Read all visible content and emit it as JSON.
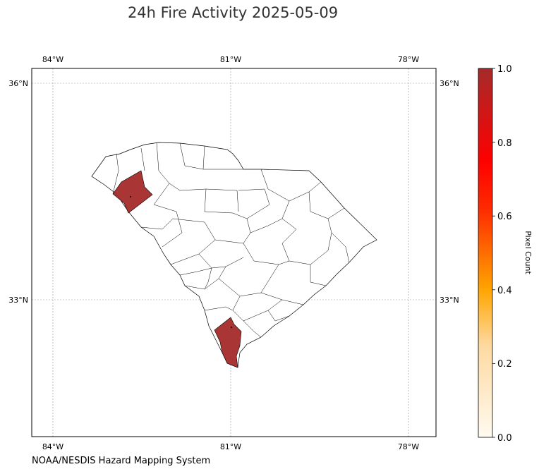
{
  "title": "24h Fire Activity 2025-05-09",
  "credit": "NOAA/NESDIS Hazard Mapping System",
  "map": {
    "lon_ticks": [
      "84°W",
      "81°W",
      "78°W"
    ],
    "lat_ticks": [
      "36°N",
      "33°N"
    ],
    "region": "South Carolina counties",
    "highlight_color": "#a52a2a",
    "highlighted_counties": [
      {
        "name": "upstate county",
        "value": 1.0
      },
      {
        "name": "lowcountry county",
        "value": 1.0
      }
    ]
  },
  "colorbar": {
    "label": "Pixel Count",
    "ticks": [
      "0.0",
      "0.2",
      "0.4",
      "0.6",
      "0.8",
      "1.0"
    ],
    "colors": [
      "#fff8e6",
      "#ffa500",
      "#ff0000",
      "#a52a2a"
    ]
  }
}
